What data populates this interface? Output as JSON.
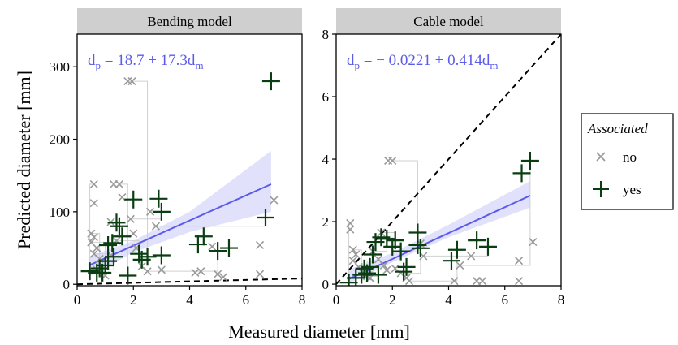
{
  "figure": {
    "xlabel": "Measured diameter [mm]",
    "ylabel": "Predicted diameter [mm]"
  },
  "legend": {
    "title": "Associated",
    "items": [
      {
        "label": "no",
        "marker": "x",
        "color": "#9a9a9a"
      },
      {
        "label": "yes",
        "marker": "+",
        "color": "#0a3d12"
      }
    ]
  },
  "colors": {
    "fit_line": "#5b5bea",
    "ci_band": "#dcdcfb",
    "strip_bg": "#cfcfcf",
    "no": "#9a9a9a",
    "yes": "#0a3d12",
    "identity_line": "#000000",
    "pair_lines": "#d0d0d0"
  },
  "chart_data": [
    {
      "type": "scatter",
      "title": "Bending model",
      "equation": {
        "sub_left": "p",
        "sub_right": "m",
        "prefix": "d",
        "body": " = 18.7 + 17.3d"
      },
      "xlim": [
        0,
        8
      ],
      "ylim": [
        -2,
        345
      ],
      "xticks": [
        0,
        2,
        4,
        6,
        8
      ],
      "yticks": [
        0,
        100,
        200,
        300
      ],
      "fit": {
        "intercept": 18.7,
        "slope": 17.3,
        "x_range": [
          0.4,
          6.9
        ],
        "ci_lower": [
          [
            0.4,
            10
          ],
          [
            2,
            44
          ],
          [
            4,
            72
          ],
          [
            6.9,
            100
          ]
        ],
        "ci_upper": [
          [
            0.4,
            38
          ],
          [
            2,
            60
          ],
          [
            4,
            100
          ],
          [
            6.9,
            184
          ]
        ]
      },
      "identity_line": true,
      "series": [
        {
          "name": "no",
          "points": [
            [
              0.6,
              138
            ],
            [
              0.6,
              112
            ],
            [
              0.5,
              70
            ],
            [
              0.6,
              65
            ],
            [
              0.5,
              58
            ],
            [
              0.7,
              50
            ],
            [
              0.6,
              42
            ],
            [
              0.8,
              35
            ],
            [
              0.7,
              20
            ],
            [
              1.0,
              12
            ],
            [
              1.2,
              86
            ],
            [
              1.3,
              138
            ],
            [
              1.5,
              138
            ],
            [
              1.6,
              120
            ],
            [
              1.4,
              60
            ],
            [
              1.2,
              40
            ],
            [
              1.8,
              280
            ],
            [
              1.95,
              280
            ],
            [
              1.9,
              90
            ],
            [
              2.0,
              70
            ],
            [
              2.1,
              50
            ],
            [
              2.3,
              25
            ],
            [
              2.5,
              18
            ],
            [
              2.6,
              100
            ],
            [
              2.8,
              80
            ],
            [
              3.0,
              20
            ],
            [
              4.2,
              16
            ],
            [
              4.4,
              18
            ],
            [
              4.8,
              52
            ],
            [
              5.0,
              14
            ],
            [
              5.2,
              10
            ],
            [
              6.5,
              54
            ],
            [
              6.5,
              14
            ],
            [
              7.0,
              116
            ]
          ]
        },
        {
          "name": "yes",
          "points": [
            [
              0.45,
              18
            ],
            [
              0.7,
              16
            ],
            [
              0.8,
              22
            ],
            [
              0.9,
              16
            ],
            [
              1.0,
              26
            ],
            [
              1.1,
              32
            ],
            [
              1.1,
              54
            ],
            [
              1.25,
              57
            ],
            [
              1.3,
              38
            ],
            [
              1.4,
              85
            ],
            [
              1.5,
              80
            ],
            [
              1.6,
              66
            ],
            [
              1.8,
              12
            ],
            [
              2.0,
              117
            ],
            [
              2.2,
              42
            ],
            [
              2.3,
              34
            ],
            [
              2.5,
              38
            ],
            [
              2.9,
              118
            ],
            [
              3.0,
              100
            ],
            [
              3.0,
              40
            ],
            [
              4.3,
              55
            ],
            [
              4.5,
              66
            ],
            [
              5.0,
              46
            ],
            [
              5.4,
              50
            ],
            [
              6.7,
              92
            ],
            [
              6.9,
              280
            ]
          ]
        }
      ]
    },
    {
      "type": "scatter",
      "title": "Cable model",
      "equation": {
        "sub_left": "p",
        "sub_right": "m",
        "prefix": "d",
        "body": " = − 0.0221 + 0.414d"
      },
      "xlim": [
        0,
        8
      ],
      "ylim": [
        -0.05,
        8
      ],
      "xticks": [
        0,
        2,
        4,
        6,
        8
      ],
      "yticks": [
        0,
        2,
        4,
        6,
        8
      ],
      "fit": {
        "intercept": -0.0221,
        "slope": 0.414,
        "x_range": [
          0.4,
          6.9
        ],
        "ci_lower": [
          [
            0.4,
            0.0
          ],
          [
            2,
            0.7
          ],
          [
            4,
            1.5
          ],
          [
            6.9,
            2.45
          ]
        ],
        "ci_upper": [
          [
            0.4,
            0.45
          ],
          [
            2,
            1.0
          ],
          [
            4,
            1.9
          ],
          [
            6.9,
            3.3
          ]
        ]
      },
      "identity_line": true,
      "series": [
        {
          "name": "no",
          "points": [
            [
              0.5,
              1.95
            ],
            [
              0.5,
              1.75
            ],
            [
              0.6,
              1.1
            ],
            [
              0.7,
              0.95
            ],
            [
              0.6,
              0.75
            ],
            [
              0.8,
              0.55
            ],
            [
              0.9,
              0.4
            ],
            [
              1.0,
              0.3
            ],
            [
              1.1,
              0.25
            ],
            [
              1.2,
              0.2
            ],
            [
              1.3,
              1.05
            ],
            [
              1.5,
              0.8
            ],
            [
              1.6,
              1.65
            ],
            [
              1.7,
              0.6
            ],
            [
              1.8,
              0.45
            ],
            [
              1.85,
              3.95
            ],
            [
              2.0,
              3.95
            ],
            [
              2.1,
              0.5
            ],
            [
              2.3,
              0.35
            ],
            [
              2.5,
              0.2
            ],
            [
              2.6,
              0.1
            ],
            [
              3.0,
              1.3
            ],
            [
              3.1,
              0.9
            ],
            [
              4.2,
              0.1
            ],
            [
              4.4,
              0.6
            ],
            [
              4.8,
              0.9
            ],
            [
              5.0,
              0.1
            ],
            [
              5.2,
              0.1
            ],
            [
              6.5,
              0.75
            ],
            [
              6.5,
              0.1
            ],
            [
              7.0,
              1.35
            ]
          ]
        },
        {
          "name": "yes",
          "points": [
            [
              0.45,
              0.05
            ],
            [
              0.7,
              0.2
            ],
            [
              0.9,
              0.3
            ],
            [
              1.0,
              0.5
            ],
            [
              1.1,
              0.35
            ],
            [
              1.2,
              0.55
            ],
            [
              1.3,
              0.95
            ],
            [
              1.4,
              1.35
            ],
            [
              1.5,
              0.3
            ],
            [
              1.6,
              1.5
            ],
            [
              1.8,
              1.45
            ],
            [
              2.0,
              1.2
            ],
            [
              2.1,
              1.4
            ],
            [
              2.3,
              1.05
            ],
            [
              2.4,
              0.4
            ],
            [
              2.5,
              0.55
            ],
            [
              2.9,
              1.65
            ],
            [
              2.9,
              1.25
            ],
            [
              3.0,
              1.15
            ],
            [
              4.1,
              0.75
            ],
            [
              4.3,
              1.1
            ],
            [
              5.0,
              1.4
            ],
            [
              5.4,
              1.2
            ],
            [
              6.6,
              3.55
            ],
            [
              6.9,
              3.95
            ]
          ]
        }
      ]
    }
  ]
}
